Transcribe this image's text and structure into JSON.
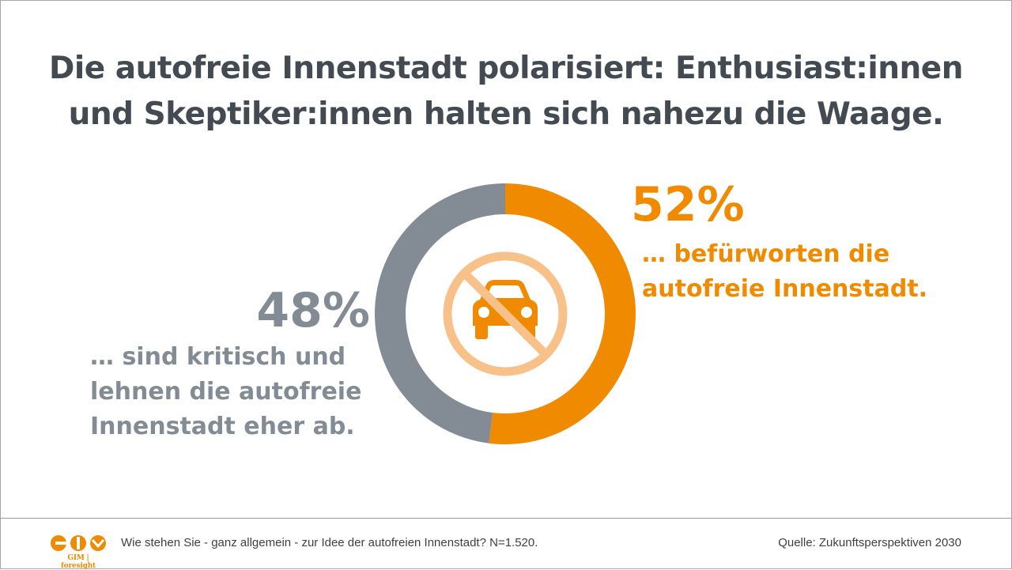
{
  "title": {
    "line1": "Die autofreie Innenstadt polarisiert: Enthusiast:innen",
    "line2": "und Skeptiker:innen halten sich nahezu die Waage."
  },
  "chart_data": {
    "type": "pie",
    "donut": true,
    "slices": [
      {
        "label": "… befürworten die autofreie Innenstadt.",
        "value": 52,
        "color": "#f08a00"
      },
      {
        "label": "… sind kritisch und lehnen die autofreie Innenstadt eher ab.",
        "value": 48,
        "color": "#838b94"
      }
    ],
    "center_icon": "no-car-icon",
    "center_icon_color": "#f8c18a"
  },
  "labels": {
    "support_pct": "52%",
    "support_line1": "… befürworten die",
    "support_line2": "autofreie Innenstadt.",
    "critical_pct": "48%",
    "critical_line1": "… sind kritisch und",
    "critical_line2": "lehnen die autofreie",
    "critical_line3": "Innenstadt eher ab."
  },
  "footer": {
    "logo_text": "GIM | foresight",
    "question": "Wie stehen Sie - ganz allgemein - zur Idee der autofreien Innenstadt? N=1.520.",
    "source": "Quelle: Zukunftsperspektiven 2030"
  },
  "colors": {
    "accent": "#f08a00",
    "grey": "#838b94",
    "title": "#434a52"
  }
}
